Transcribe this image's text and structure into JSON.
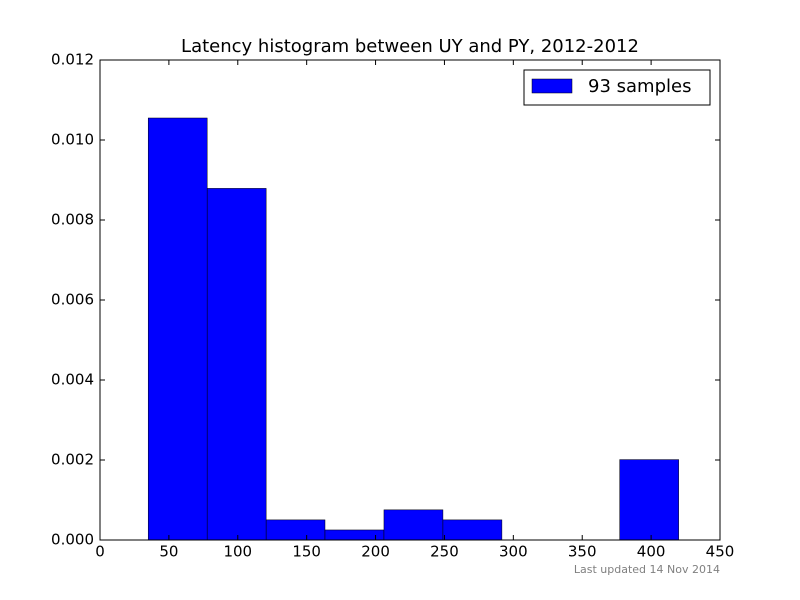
{
  "chart_data": {
    "type": "histogram",
    "title": "Latency histogram between UY and PY, 2012-2012",
    "bins": [
      35,
      77.8,
      120.6,
      163.3,
      206.1,
      248.9,
      291.7,
      334.4,
      377.2,
      420
    ],
    "series": [
      {
        "name": "93 samples",
        "color": "#0000ff",
        "values": [
          0.01055,
          0.00879,
          0.000503,
          0.000251,
          0.000754,
          0.000503,
          0,
          0,
          0.00201
        ]
      }
    ],
    "xlim": [
      0,
      450
    ],
    "ylim": [
      0,
      0.012
    ],
    "xticks": [
      0,
      50,
      100,
      150,
      200,
      250,
      300,
      350,
      400,
      450
    ],
    "yticks": [
      {
        "value": 0,
        "label": "0.000"
      },
      {
        "value": 0.002,
        "label": "0.002"
      },
      {
        "value": 0.004,
        "label": "0.004"
      },
      {
        "value": 0.006,
        "label": "0.006"
      },
      {
        "value": 0.008,
        "label": "0.008"
      },
      {
        "value": 0.01,
        "label": "0.010"
      },
      {
        "value": 0.012,
        "label": "0.012"
      }
    ],
    "legend": "upper right",
    "footnote": "Last updated 14 Nov 2014"
  }
}
